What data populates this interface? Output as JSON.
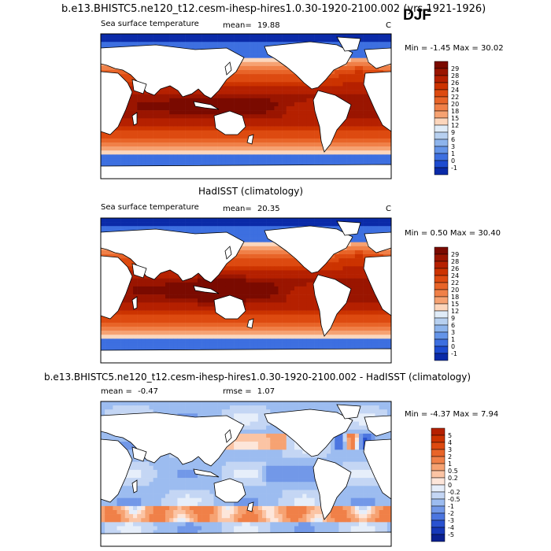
{
  "header": {
    "title": "b.e13.BHISTC5.ne120_t12.cesm-ihesp-hires1.0.30-1920-2100.002 (yrs 1921-1926)",
    "season": "DJF"
  },
  "panels": [
    {
      "id": "model",
      "heading": "",
      "variable": "Sea surface temperature",
      "mean_label": "mean=",
      "mean_value": "19.88",
      "rmse_label": "",
      "rmse_value": "",
      "units": "C",
      "minmax": "Min =  -1.45 Max =  30.02",
      "palette": "warm",
      "colorbar": {
        "labels": [
          "29",
          "28",
          "26",
          "24",
          "22",
          "20",
          "18",
          "15",
          "12",
          "9",
          "6",
          "3",
          "1",
          "0",
          "-1"
        ],
        "colors": [
          "#7a0a00",
          "#9a1500",
          "#b52000",
          "#cc3300",
          "#dd4a10",
          "#e86428",
          "#f08048",
          "#f6a272",
          "#fcd6bc",
          "#e0ecf8",
          "#b7d0f0",
          "#8db4ec",
          "#6494e8",
          "#3d6fe0",
          "#1d4bd0",
          "#0a2aa8"
        ]
      }
    },
    {
      "id": "obs",
      "heading": "HadISST (climatology)",
      "variable": "Sea surface temperature",
      "mean_label": "mean=",
      "mean_value": "20.35",
      "rmse_label": "",
      "rmse_value": "",
      "units": "C",
      "minmax": "Min =  0.50 Max =  30.40",
      "palette": "warm",
      "colorbar": {
        "labels": [
          "29",
          "28",
          "26",
          "24",
          "22",
          "20",
          "18",
          "15",
          "12",
          "9",
          "6",
          "3",
          "1",
          "0",
          "-1"
        ],
        "colors": [
          "#7a0a00",
          "#9a1500",
          "#b52000",
          "#cc3300",
          "#dd4a10",
          "#e86428",
          "#f08048",
          "#f6a272",
          "#fcd6bc",
          "#e0ecf8",
          "#b7d0f0",
          "#8db4ec",
          "#6494e8",
          "#3d6fe0",
          "#1d4bd0",
          "#0a2aa8"
        ]
      }
    },
    {
      "id": "diff",
      "heading": "b.e13.BHISTC5.ne120_t12.cesm-ihesp-hires1.0.30-1920-2100.002 - HadISST (climatology)",
      "variable": "",
      "mean_label": "mean =",
      "mean_value": "-0.47",
      "rmse_label": "rmse =",
      "rmse_value": "1.07",
      "units": "",
      "minmax": "Min =  -4.37 Max =  7.94",
      "palette": "diverging",
      "colorbar": {
        "labels": [
          "5",
          "4",
          "3",
          "2",
          "1",
          "0.5",
          "0.2",
          "0",
          "-0.2",
          "-0.5",
          "-1",
          "-2",
          "-3",
          "-4",
          "-5"
        ],
        "colors": [
          "#b52000",
          "#cc3300",
          "#dd4a10",
          "#e86428",
          "#f08048",
          "#f6a272",
          "#fbc4a4",
          "#fde6da",
          "#e6eefa",
          "#c4d6f4",
          "#9cbcf0",
          "#7298e8",
          "#4c76e0",
          "#2a52d0",
          "#1638b8",
          "#0a2090"
        ]
      }
    }
  ]
}
